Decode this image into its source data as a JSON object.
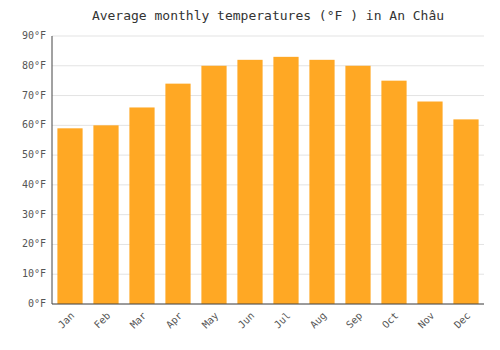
{
  "chart_data": {
    "type": "bar",
    "title": "Average monthly temperatures (°F ) in An Châu",
    "categories": [
      "Jan",
      "Feb",
      "Mar",
      "Apr",
      "May",
      "Jun",
      "Jul",
      "Aug",
      "Sep",
      "Oct",
      "Nov",
      "Dec"
    ],
    "values": [
      59,
      60,
      66,
      74,
      80,
      82,
      83,
      82,
      80,
      75,
      68,
      62
    ],
    "color": "#FFA824",
    "ylim": [
      0,
      90
    ],
    "yticks": [
      {
        "value": 0,
        "label": "0°F"
      },
      {
        "value": 10,
        "label": "10°F"
      },
      {
        "value": 20,
        "label": "20°F"
      },
      {
        "value": 30,
        "label": "30°F"
      },
      {
        "value": 40,
        "label": "40°F"
      },
      {
        "value": 50,
        "label": "50°F"
      },
      {
        "value": 60,
        "label": "60°F"
      },
      {
        "value": 70,
        "label": "70°F"
      },
      {
        "value": 80,
        "label": "80°F"
      },
      {
        "value": 90,
        "label": "90°F"
      }
    ],
    "grid": true
  }
}
